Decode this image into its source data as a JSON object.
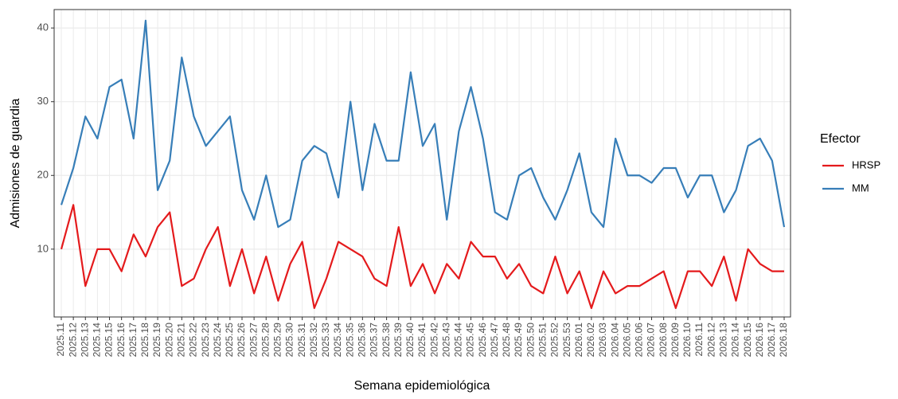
{
  "chart_data": {
    "type": "line",
    "x_label": "Semana epidemiológica",
    "y_label": "Admisiones de guardia",
    "legend_title": "Efector",
    "legend_position": "right",
    "grid": true,
    "categories": [
      "2025.11",
      "2025.12",
      "2025.13",
      "2025.14",
      "2025.15",
      "2025.16",
      "2025.17",
      "2025.18",
      "2025.19",
      "2025.20",
      "2025.21",
      "2025.22",
      "2025.23",
      "2025.24",
      "2025.25",
      "2025.26",
      "2025.27",
      "2025.28",
      "2025.29",
      "2025.30",
      "2025.31",
      "2025.32",
      "2025.33",
      "2025.34",
      "2025.35",
      "2025.36",
      "2025.37",
      "2025.38",
      "2025.39",
      "2025.40",
      "2025.41",
      "2025.42",
      "2025.43",
      "2025.44",
      "2025.45",
      "2025.46",
      "2025.47",
      "2025.48",
      "2025.49",
      "2025.50",
      "2025.51",
      "2025.52",
      "2025.53",
      "2026.01",
      "2026.02",
      "2026.03",
      "2026.04",
      "2026.05",
      "2026.06",
      "2026.07",
      "2026.08",
      "2026.09",
      "2026.10",
      "2026.11",
      "2026.12",
      "2026.13",
      "2026.14",
      "2026.15",
      "2026.16",
      "2026.17",
      "2026.18"
    ],
    "series": [
      {
        "name": "HRSP",
        "color": "#e41a1c",
        "values": [
          10,
          16,
          5,
          10,
          10,
          7,
          12,
          9,
          13,
          15,
          5,
          6,
          10,
          13,
          5,
          10,
          4,
          9,
          3,
          8,
          11,
          2,
          6,
          11,
          10,
          9,
          6,
          5,
          13,
          5,
          8,
          4,
          8,
          6,
          11,
          9,
          9,
          6,
          8,
          5,
          4,
          9,
          4,
          7,
          2,
          7,
          4,
          5,
          5,
          6,
          7,
          2,
          7,
          7,
          5,
          9,
          3,
          10,
          8,
          7,
          7
        ]
      },
      {
        "name": "MM",
        "color": "#377eb8",
        "values": [
          16,
          21,
          28,
          25,
          32,
          33,
          25,
          41,
          18,
          22,
          36,
          28,
          24,
          26,
          28,
          18,
          14,
          20,
          13,
          14,
          22,
          24,
          23,
          17,
          30,
          18,
          27,
          22,
          22,
          34,
          24,
          27,
          14,
          26,
          32,
          25,
          15,
          14,
          20,
          21,
          17,
          14,
          18,
          23,
          15,
          13,
          25,
          20,
          20,
          19,
          21,
          21,
          17,
          20,
          20,
          15,
          18,
          24,
          25,
          22,
          13
        ]
      }
    ],
    "ylim": [
      0.8,
      42.5
    ],
    "yticks": [
      10,
      20,
      30,
      40
    ]
  }
}
